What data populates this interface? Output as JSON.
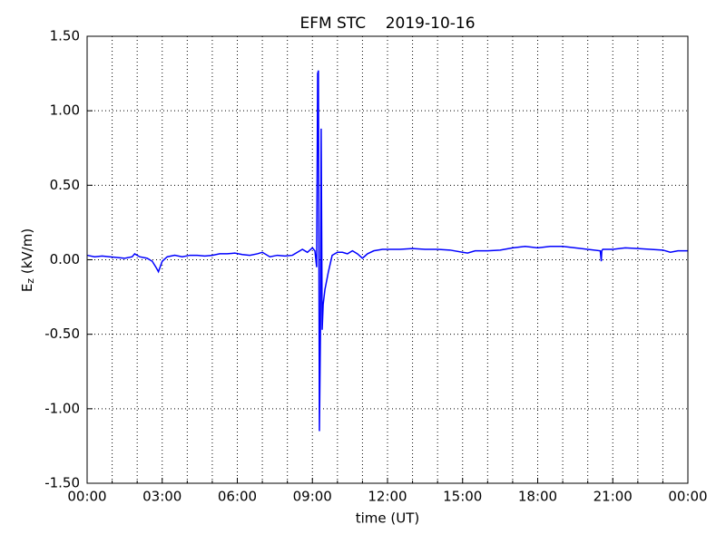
{
  "chart_data": {
    "type": "line",
    "title": "EFM STC    2019-10-16",
    "xlabel": "time (UT)",
    "ylabel": {
      "base": "E",
      "subscript": "z",
      "rest": " (kV/m)"
    },
    "xlim": [
      0,
      24
    ],
    "ylim": [
      -1.5,
      1.5
    ],
    "xticks": [
      {
        "value": 0,
        "label": "00:00"
      },
      {
        "value": 3,
        "label": "03:00"
      },
      {
        "value": 6,
        "label": "06:00"
      },
      {
        "value": 9,
        "label": "09:00"
      },
      {
        "value": 12,
        "label": "12:00"
      },
      {
        "value": 15,
        "label": "15:00"
      },
      {
        "value": 18,
        "label": "18:00"
      },
      {
        "value": 21,
        "label": "21:00"
      },
      {
        "value": 24,
        "label": "00:00"
      }
    ],
    "xminorticks": [
      1,
      2,
      4,
      5,
      7,
      8,
      10,
      11,
      13,
      14,
      16,
      17,
      19,
      20,
      22,
      23
    ],
    "yticks": [
      {
        "value": -1.5,
        "label": "-1.50"
      },
      {
        "value": -1.0,
        "label": "-1.00"
      },
      {
        "value": -0.5,
        "label": "-0.50"
      },
      {
        "value": 0,
        "label": "0.00"
      },
      {
        "value": 0.5,
        "label": "0.50"
      },
      {
        "value": 1.0,
        "label": "1.00"
      },
      {
        "value": 1.5,
        "label": "1.50"
      }
    ],
    "grid": true,
    "series": [
      {
        "name": "Ez",
        "color": "#0000ff",
        "x": [
          0,
          0.3,
          0.6,
          0.9,
          1.2,
          1.5,
          1.8,
          1.9,
          2.1,
          2.4,
          2.6,
          2.75,
          2.85,
          3.0,
          3.2,
          3.5,
          3.8,
          4.1,
          4.4,
          4.7,
          5.0,
          5.3,
          5.6,
          5.9,
          6.2,
          6.5,
          6.8,
          7.0,
          7.3,
          7.6,
          7.9,
          8.2,
          8.5,
          8.6,
          8.8,
          9.0,
          9.1,
          9.17,
          9.21,
          9.24,
          9.28,
          9.32,
          9.35,
          9.39,
          9.43,
          9.5,
          9.64,
          9.79,
          10.0,
          10.2,
          10.4,
          10.6,
          10.8,
          11.0,
          11.2,
          11.45,
          11.8,
          12.0,
          12.5,
          13.0,
          13.5,
          14.0,
          14.5,
          15.0,
          15.2,
          15.5,
          16.0,
          16.5,
          17.0,
          17.5,
          18.0,
          18.5,
          19.0,
          19.5,
          20.0,
          20.5,
          20.54,
          20.56,
          20.6,
          21.0,
          21.5,
          22.0,
          22.5,
          23.0,
          23.3,
          23.6,
          24.0
        ],
        "values": [
          0.03,
          0.02,
          0.025,
          0.02,
          0.015,
          0.01,
          0.02,
          0.04,
          0.02,
          0.01,
          -0.01,
          -0.05,
          -0.08,
          -0.01,
          0.02,
          0.03,
          0.02,
          0.03,
          0.03,
          0.025,
          0.03,
          0.04,
          0.04,
          0.045,
          0.035,
          0.03,
          0.04,
          0.05,
          0.02,
          0.03,
          0.025,
          0.03,
          0.06,
          0.07,
          0.05,
          0.08,
          0.06,
          -0.05,
          1.25,
          1.27,
          -1.15,
          -0.5,
          0.88,
          -0.47,
          -0.3,
          -0.2,
          -0.08,
          0.03,
          0.05,
          0.05,
          0.04,
          0.06,
          0.04,
          0.01,
          0.04,
          0.06,
          0.07,
          0.07,
          0.07,
          0.075,
          0.07,
          0.07,
          0.065,
          0.05,
          0.045,
          0.06,
          0.06,
          0.065,
          0.08,
          0.09,
          0.08,
          0.09,
          0.09,
          0.08,
          0.07,
          0.06,
          -0.01,
          0.06,
          0.07,
          0.07,
          0.08,
          0.075,
          0.07,
          0.065,
          0.05,
          0.06,
          0.06
        ]
      }
    ]
  }
}
